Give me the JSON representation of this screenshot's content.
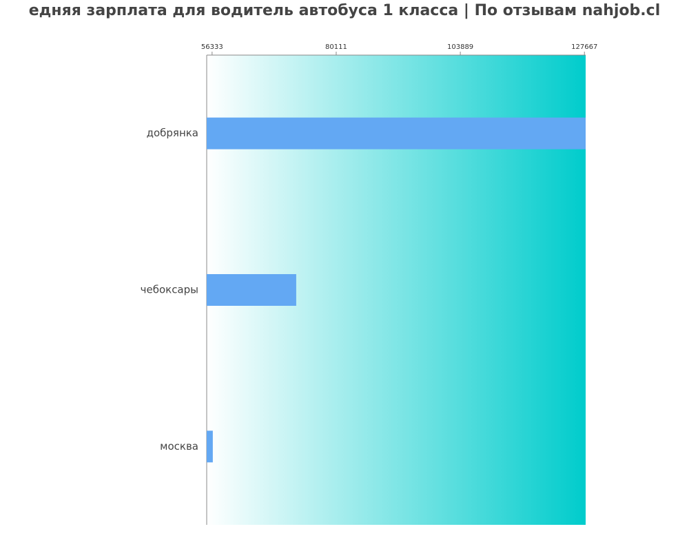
{
  "chart_data": {
    "type": "barh",
    "title": "едняя зарплата для водитель автобуса 1 класса | По отзывам nahjob.cl",
    "categories": [
      "добрянка",
      "чебоксары",
      "москва"
    ],
    "values": [
      127900,
      72450,
      56470
    ],
    "color": "#63a8f3",
    "background_gradient": [
      "#ffffff",
      "#00cccc"
    ],
    "xlim": [
      55300,
      127900
    ],
    "xticks": [
      56333,
      80111,
      103889,
      127667
    ]
  }
}
